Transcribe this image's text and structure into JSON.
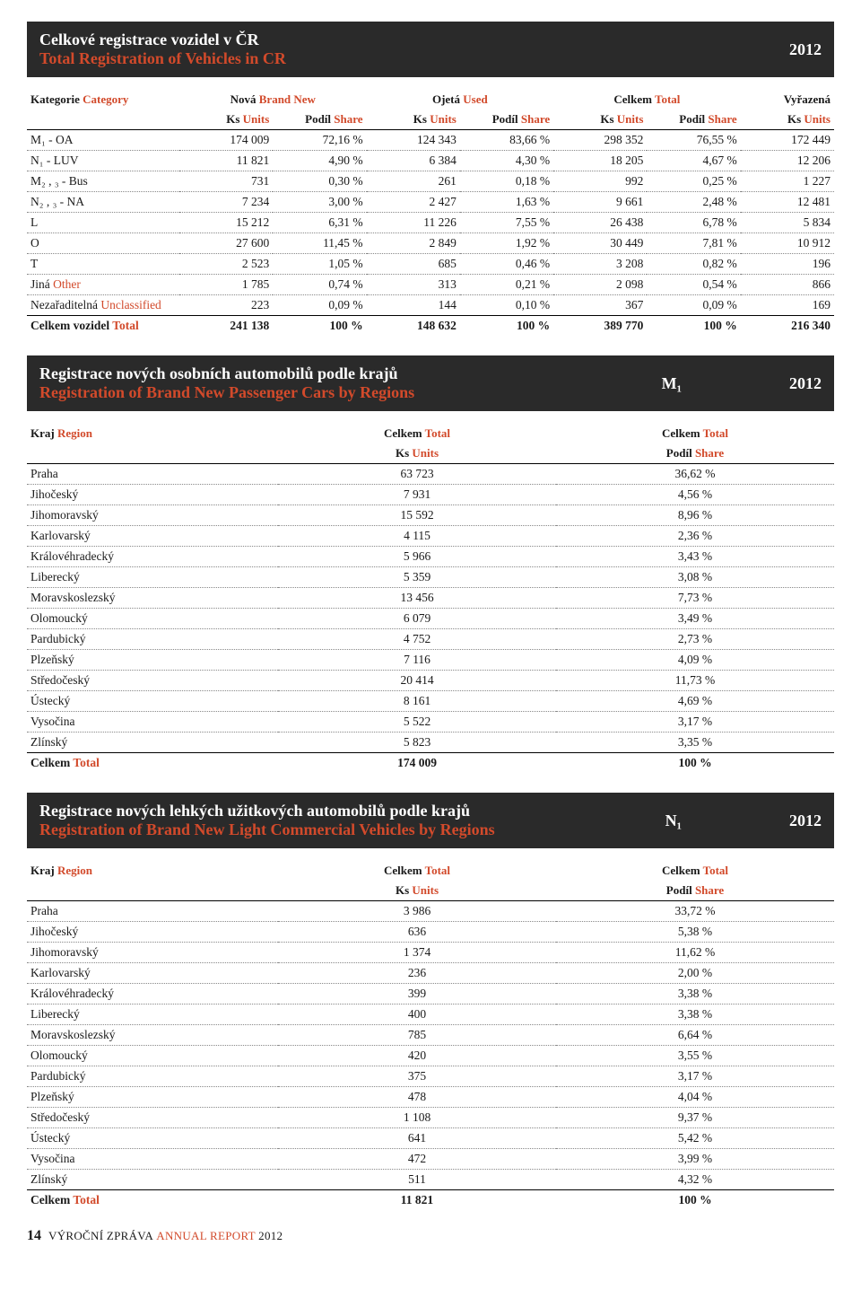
{
  "colors": {
    "accent": "#d24a2b",
    "header_bg": "#2a2a2a",
    "text": "#1a1a1a"
  },
  "year": "2012",
  "section1": {
    "title_cz": "Celkové registrace vozidel v ČR",
    "title_en": "Total Registration of Vehicles in CR",
    "header": {
      "cat_cz": "Kategorie",
      "cat_en": "Category",
      "nova_cz": "Nová",
      "nova_en": "Brand New",
      "ojeta_cz": "Ojetá",
      "ojeta_en": "Used",
      "celkem_cz": "Celkem",
      "celkem_en": "Total",
      "vyrazena_cz": "Vyřazená",
      "ks_cz": "Ks",
      "ks_en": "Units",
      "podil_cz": "Podíl",
      "podil_en": "Share"
    },
    "rows": [
      {
        "label_cz": "M₁ - OA",
        "label_en": "",
        "v": [
          "174 009",
          "72,16 %",
          "124 343",
          "83,66 %",
          "298 352",
          "76,55 %",
          "172 449"
        ]
      },
      {
        "label_cz": "N₁ - LUV",
        "label_en": "",
        "v": [
          "11 821",
          "4,90 %",
          "6 384",
          "4,30 %",
          "18 205",
          "4,67 %",
          "12 206"
        ]
      },
      {
        "label_cz": "M₂ , ₃ - Bus",
        "label_en": "",
        "v": [
          "731",
          "0,30 %",
          "261",
          "0,18 %",
          "992",
          "0,25 %",
          "1 227"
        ]
      },
      {
        "label_cz": "N₂ , ₃ - NA",
        "label_en": "",
        "v": [
          "7 234",
          "3,00 %",
          "2 427",
          "1,63 %",
          "9 661",
          "2,48 %",
          "12 481"
        ]
      },
      {
        "label_cz": "L",
        "label_en": "",
        "v": [
          "15 212",
          "6,31 %",
          "11 226",
          "7,55 %",
          "26 438",
          "6,78 %",
          "5 834"
        ]
      },
      {
        "label_cz": "O",
        "label_en": "",
        "v": [
          "27 600",
          "11,45 %",
          "2 849",
          "1,92 %",
          "30 449",
          "7,81 %",
          "10 912"
        ]
      },
      {
        "label_cz": "T",
        "label_en": "",
        "v": [
          "2 523",
          "1,05 %",
          "685",
          "0,46 %",
          "3 208",
          "0,82 %",
          "196"
        ]
      },
      {
        "label_cz": "Jiná",
        "label_en": "Other",
        "v": [
          "1 785",
          "0,74 %",
          "313",
          "0,21 %",
          "2 098",
          "0,54 %",
          "866"
        ]
      },
      {
        "label_cz": "Nezařaditelná",
        "label_en": "Unclassified",
        "v": [
          "223",
          "0,09 %",
          "144",
          "0,10 %",
          "367",
          "0,09 %",
          "169"
        ]
      }
    ],
    "total": {
      "label_cz": "Celkem vozidel",
      "label_en": "Total",
      "v": [
        "241 138",
        "100 %",
        "148 632",
        "100 %",
        "389 770",
        "100 %",
        "216 340"
      ]
    }
  },
  "section2": {
    "title_cz": "Registrace nových osobních automobilů podle krajů",
    "title_en": "Registration of Brand New Passenger Cars by Regions",
    "badge": "M₁",
    "header": {
      "kraj_cz": "Kraj",
      "kraj_en": "Region",
      "celkem_cz": "Celkem",
      "celkem_en": "Total",
      "ks_cz": "Ks",
      "ks_en": "Units",
      "podil_cz": "Podíl",
      "podil_en": "Share"
    },
    "rows": [
      {
        "r": "Praha",
        "u": "63 723",
        "s": "36,62 %"
      },
      {
        "r": "Jihočeský",
        "u": "7 931",
        "s": "4,56 %"
      },
      {
        "r": "Jihomoravský",
        "u": "15 592",
        "s": "8,96 %"
      },
      {
        "r": "Karlovarský",
        "u": "4 115",
        "s": "2,36 %"
      },
      {
        "r": "Královéhradecký",
        "u": "5 966",
        "s": "3,43 %"
      },
      {
        "r": "Liberecký",
        "u": "5 359",
        "s": "3,08 %"
      },
      {
        "r": "Moravskoslezský",
        "u": "13 456",
        "s": "7,73 %"
      },
      {
        "r": "Olomoucký",
        "u": "6 079",
        "s": "3,49 %"
      },
      {
        "r": "Pardubický",
        "u": "4 752",
        "s": "2,73 %"
      },
      {
        "r": "Plzeňský",
        "u": "7 116",
        "s": "4,09 %"
      },
      {
        "r": "Středočeský",
        "u": "20 414",
        "s": "11,73 %"
      },
      {
        "r": "Ústecký",
        "u": "8 161",
        "s": "4,69 %"
      },
      {
        "r": "Vysočina",
        "u": "5 522",
        "s": "3,17 %"
      },
      {
        "r": "Zlínský",
        "u": "5 823",
        "s": "3,35 %"
      }
    ],
    "total": {
      "label_cz": "Celkem",
      "label_en": "Total",
      "u": "174 009",
      "s": "100 %"
    }
  },
  "section3": {
    "title_cz": "Registrace nových lehkých užitkových automobilů podle krajů",
    "title_en": "Registration of Brand New Light Commercial Vehicles by Regions",
    "badge": "N₁",
    "rows": [
      {
        "r": "Praha",
        "u": "3 986",
        "s": "33,72 %"
      },
      {
        "r": "Jihočeský",
        "u": "636",
        "s": "5,38 %"
      },
      {
        "r": "Jihomoravský",
        "u": "1 374",
        "s": "11,62 %"
      },
      {
        "r": "Karlovarský",
        "u": "236",
        "s": "2,00 %"
      },
      {
        "r": "Královéhradecký",
        "u": "399",
        "s": "3,38 %"
      },
      {
        "r": "Liberecký",
        "u": "400",
        "s": "3,38 %"
      },
      {
        "r": "Moravskoslezský",
        "u": "785",
        "s": "6,64 %"
      },
      {
        "r": "Olomoucký",
        "u": "420",
        "s": "3,55 %"
      },
      {
        "r": "Pardubický",
        "u": "375",
        "s": "3,17 %"
      },
      {
        "r": "Plzeňský",
        "u": "478",
        "s": "4,04 %"
      },
      {
        "r": "Středočeský",
        "u": "1 108",
        "s": "9,37 %"
      },
      {
        "r": "Ústecký",
        "u": "641",
        "s": "5,42 %"
      },
      {
        "r": "Vysočina",
        "u": "472",
        "s": "3,99 %"
      },
      {
        "r": "Zlínský",
        "u": "511",
        "s": "4,32 %"
      }
    ],
    "total": {
      "label_cz": "Celkem",
      "label_en": "Total",
      "u": "11 821",
      "s": "100 %"
    }
  },
  "footer": {
    "page": "14",
    "text_cz": "VÝROČNÍ ZPRÁVA",
    "text_en": "ANNUAL REPORT",
    "year": "2012"
  }
}
